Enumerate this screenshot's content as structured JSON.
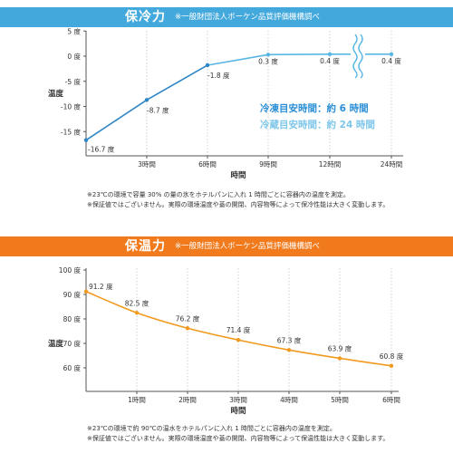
{
  "colors": {
    "cold_band": "#43a9dc",
    "cold_line": "#2f86c6",
    "cold_line_light": "#58b6e3",
    "warm_band": "#f07a1c",
    "warm_line": "#f29a1e",
    "axis": "#555555",
    "grid": "#bbbbbb",
    "text": "#333333",
    "cold_callout_1": "#2b8fd6",
    "cold_callout_2": "#7ec6ea"
  },
  "cold_section": {
    "title": "保冷力",
    "subtitle": "※一般財団法人ボーケン品質評価機構調べ",
    "callout_1": "冷凍目安時間：約 6 時間",
    "callout_2": "冷蔵目安時間：約 24 時間",
    "note_1": "※23℃の環境で容量 30% の量の氷をホテルパンに入れ 1 時間ごとに容器内の温度を測定。",
    "note_2": "※保証値ではございません。実際の環境温度や蓋の開閉、内容物等によって保冷性能は大きく変動します。"
  },
  "warm_section": {
    "title": "保温力",
    "subtitle": "※一般財団法人ボーケン品質評価機構調べ",
    "note_1": "※23℃の環境で約 90℃の温水をホテルパンに入れ 1 時間ごとに容器内の温度を測定。",
    "note_2": "※保証値ではございません。実際の環境温度や蓋の開閉、内容物等によって保温性能は大きく変動します。"
  },
  "chart_data": [
    {
      "type": "line",
      "title": "保冷力",
      "xlabel": "時間",
      "ylabel": "温度",
      "categories": [
        "",
        "3時間",
        "6時間",
        "9時間",
        "12時間",
        "24時間"
      ],
      "values": [
        -16.7,
        -8.7,
        -1.8,
        0.3,
        0.4,
        0.4
      ],
      "point_labels": [
        "-16.7 度",
        "-8.7 度",
        "-1.8 度",
        "0.3 度",
        "0.4 度",
        "0.4 度"
      ],
      "yticks": [
        5,
        0,
        -5,
        -10,
        -15
      ],
      "ytick_labels": [
        "5 度",
        "0 度",
        "-5 度",
        "-10 度",
        "-15 度"
      ],
      "ylim": [
        -19,
        5
      ],
      "axis_break": "between 12時間 and 24時間",
      "grid": "vertical dotted"
    },
    {
      "type": "line",
      "title": "保温力",
      "xlabel": "時間",
      "ylabel": "温度",
      "categories": [
        "",
        "1時間",
        "2時間",
        "3時間",
        "4時間",
        "5時間",
        "6時間"
      ],
      "values": [
        91.2,
        82.5,
        76.2,
        71.4,
        67.3,
        63.9,
        60.8
      ],
      "point_labels": [
        "91.2 度",
        "82.5 度",
        "76.2 度",
        "71.4 度",
        "67.3 度",
        "63.9 度",
        "60.8 度"
      ],
      "yticks": [
        100,
        90,
        80,
        70,
        60
      ],
      "ytick_labels": [
        "100 度",
        "90 度",
        "80 度",
        "70 度",
        "60 度"
      ],
      "ylim": [
        50,
        100
      ],
      "grid": "vertical dotted"
    }
  ]
}
